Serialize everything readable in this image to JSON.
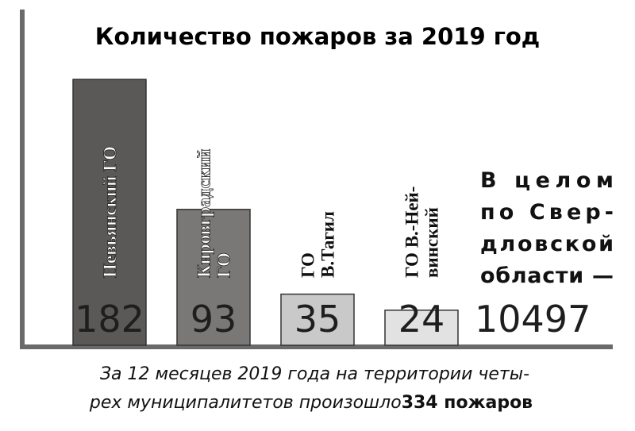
{
  "chart_data": {
    "type": "bar",
    "title": "Количество пожаров за 2019 год",
    "categories": [
      [
        "Невьянский ГО"
      ],
      [
        "Кировградский",
        "ГО"
      ],
      [
        "ГО",
        "В.Тагил"
      ],
      [
        "ГО В.-Ней-",
        "винский"
      ]
    ],
    "values": [
      182,
      93,
      35,
      24
    ],
    "colors": [
      "#5b5957",
      "#7a7876",
      "#c9c9c9",
      "#e2e2e2"
    ],
    "ylim": [
      0,
      182
    ],
    "total_text": [
      "В целом",
      "по Свер-",
      "дловской",
      "области —"
    ],
    "total_value": 10497,
    "footnote": [
      "За 12 месяцев 2019 года на территории четы-",
      "рех муниципалитетов произошло",
      "334 пожаров"
    ]
  }
}
